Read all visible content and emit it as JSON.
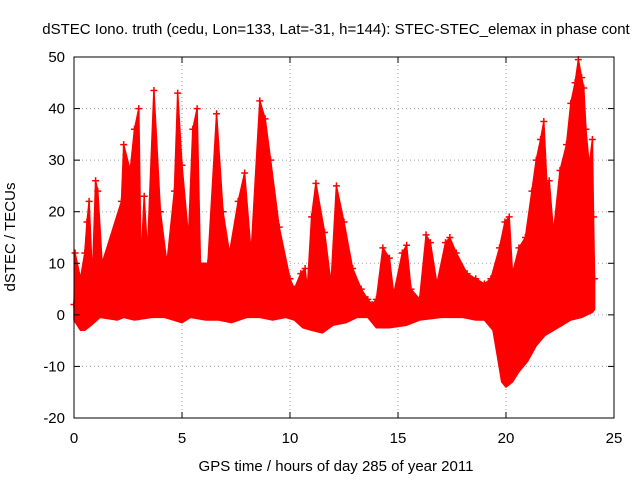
{
  "chart_data": {
    "type": "area",
    "title": "dSTEC Iono. truth (cedu, Lon=133, Lat=-31, h=144): STEC-STEC_elemax in phase cont",
    "xlabel": "GPS time / hours of day 285 of year 2011",
    "ylabel": "dSTEC  / TECUs",
    "xlim": [
      0,
      25
    ],
    "ylim": [
      -20,
      50
    ],
    "x_ticks": [
      0,
      5,
      10,
      15,
      20,
      25
    ],
    "y_ticks": [
      -20,
      -10,
      0,
      10,
      20,
      30,
      40,
      50
    ],
    "x_tick_labels": [
      "0",
      "5",
      "10",
      "15",
      "20",
      "25"
    ],
    "y_tick_labels": [
      "-20",
      "-10",
      "0",
      "10",
      "20",
      "30",
      "40",
      "50"
    ],
    "grid": true,
    "series_color": "#ff0000",
    "marker": "+",
    "series": [
      {
        "upper_envelope": [
          [
            0.0,
            2
          ],
          [
            0.05,
            12
          ],
          [
            0.3,
            7
          ],
          [
            0.5,
            12
          ],
          [
            0.6,
            18
          ],
          [
            0.7,
            22
          ],
          [
            0.85,
            7
          ],
          [
            1.0,
            26
          ],
          [
            1.1,
            24
          ],
          [
            1.3,
            10
          ],
          [
            2.2,
            22
          ],
          [
            2.3,
            33
          ],
          [
            2.6,
            28
          ],
          [
            2.8,
            36
          ],
          [
            3.0,
            40
          ],
          [
            3.1,
            10
          ],
          [
            3.25,
            23
          ],
          [
            3.4,
            12
          ],
          [
            3.7,
            43.5
          ],
          [
            4.0,
            20
          ],
          [
            4.3,
            10
          ],
          [
            4.65,
            24
          ],
          [
            4.8,
            43
          ],
          [
            5.0,
            29
          ],
          [
            5.3,
            15
          ],
          [
            5.5,
            36
          ],
          [
            5.7,
            40
          ],
          [
            5.85,
            10
          ],
          [
            6.2,
            10
          ],
          [
            6.6,
            39
          ],
          [
            6.9,
            20
          ],
          [
            7.2,
            12
          ],
          [
            7.6,
            22
          ],
          [
            7.9,
            27.5
          ],
          [
            8.2,
            12
          ],
          [
            8.6,
            41.5
          ],
          [
            8.85,
            38
          ],
          [
            9.1,
            30
          ],
          [
            9.5,
            17
          ],
          [
            10.0,
            7
          ],
          [
            10.2,
            5
          ],
          [
            10.5,
            8
          ],
          [
            10.7,
            9
          ],
          [
            10.8,
            5
          ],
          [
            11.0,
            19
          ],
          [
            11.2,
            25.5
          ],
          [
            11.6,
            16
          ],
          [
            11.9,
            6
          ],
          [
            12.15,
            25
          ],
          [
            12.5,
            18
          ],
          [
            12.9,
            9
          ],
          [
            13.3,
            5
          ],
          [
            13.6,
            3
          ],
          [
            13.8,
            2
          ],
          [
            14.0,
            3
          ],
          [
            14.3,
            13
          ],
          [
            14.6,
            11
          ],
          [
            14.8,
            4
          ],
          [
            15.2,
            12
          ],
          [
            15.4,
            13.5
          ],
          [
            15.6,
            5
          ],
          [
            16.0,
            3
          ],
          [
            16.3,
            15.5
          ],
          [
            16.5,
            14
          ],
          [
            16.8,
            6
          ],
          [
            17.2,
            14
          ],
          [
            17.4,
            15
          ],
          [
            17.7,
            12
          ],
          [
            18.2,
            8
          ],
          [
            18.6,
            7
          ],
          [
            19.0,
            6
          ],
          [
            19.3,
            7
          ],
          [
            19.7,
            13
          ],
          [
            19.95,
            18
          ],
          [
            20.15,
            19
          ],
          [
            20.3,
            8
          ],
          [
            20.6,
            13
          ],
          [
            20.9,
            15
          ],
          [
            21.2,
            24
          ],
          [
            21.4,
            30
          ],
          [
            21.6,
            34
          ],
          [
            21.75,
            37.5
          ],
          [
            21.9,
            25
          ],
          [
            22.0,
            26
          ],
          [
            22.2,
            16
          ],
          [
            22.5,
            28
          ],
          [
            22.8,
            33
          ],
          [
            23.0,
            41
          ],
          [
            23.2,
            45
          ],
          [
            23.35,
            49.5
          ],
          [
            23.5,
            46
          ],
          [
            23.6,
            44
          ],
          [
            23.7,
            36
          ],
          [
            23.85,
            29
          ],
          [
            24.0,
            34
          ],
          [
            24.05,
            19
          ],
          [
            24.1,
            7
          ]
        ],
        "lower_envelope": [
          [
            0.0,
            -1
          ],
          [
            0.3,
            -3
          ],
          [
            0.5,
            -3
          ],
          [
            0.8,
            -2
          ],
          [
            1.2,
            -0.5
          ],
          [
            2.0,
            -1
          ],
          [
            2.3,
            -0.5
          ],
          [
            2.8,
            -1
          ],
          [
            3.6,
            -0.5
          ],
          [
            4.2,
            -0.5
          ],
          [
            4.6,
            -1
          ],
          [
            5.0,
            -1.5
          ],
          [
            5.4,
            -0.5
          ],
          [
            6.1,
            -1
          ],
          [
            6.7,
            -1
          ],
          [
            7.3,
            -1.5
          ],
          [
            8.0,
            -0.5
          ],
          [
            8.6,
            -0.5
          ],
          [
            9.2,
            -1
          ],
          [
            9.8,
            -0.5
          ],
          [
            10.2,
            -1
          ],
          [
            10.6,
            -2.5
          ],
          [
            11.0,
            -3
          ],
          [
            11.5,
            -3.5
          ],
          [
            12.0,
            -2
          ],
          [
            12.6,
            -1.5
          ],
          [
            13.1,
            -0.5
          ],
          [
            13.6,
            -0.5
          ],
          [
            14.0,
            -2.5
          ],
          [
            14.6,
            -2.5
          ],
          [
            15.4,
            -2
          ],
          [
            16.0,
            -1
          ],
          [
            17.0,
            -0.5
          ],
          [
            18.0,
            -0.5
          ],
          [
            18.6,
            -1
          ],
          [
            19.0,
            -1
          ],
          [
            19.4,
            -3
          ],
          [
            19.6,
            -8
          ],
          [
            19.8,
            -13
          ],
          [
            20.0,
            -14
          ],
          [
            20.3,
            -13
          ],
          [
            20.6,
            -11
          ],
          [
            21.0,
            -9
          ],
          [
            21.4,
            -6
          ],
          [
            21.8,
            -4
          ],
          [
            22.2,
            -3
          ],
          [
            22.6,
            -2
          ],
          [
            23.0,
            -1
          ],
          [
            23.5,
            -0.5
          ],
          [
            24.0,
            0.5
          ],
          [
            24.1,
            1
          ]
        ]
      }
    ]
  }
}
